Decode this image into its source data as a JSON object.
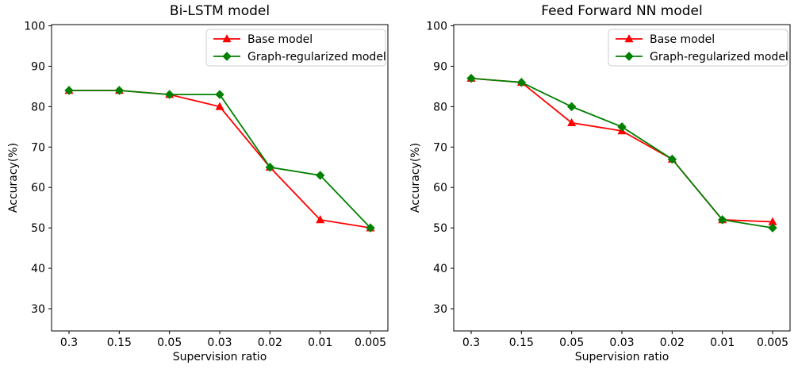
{
  "figure": {
    "background": "#ffffff",
    "legend_border_color": "#cccccc"
  },
  "chart_data": [
    {
      "type": "line",
      "title": "Bi-LSTM model",
      "xlabel": "Supervision ratio",
      "ylabel": "Accuracy(%)",
      "categories": [
        "0.3",
        "0.15",
        "0.05",
        "0.03",
        "0.02",
        "0.01",
        "0.005"
      ],
      "yticks": [
        30,
        40,
        50,
        60,
        70,
        80,
        90,
        100
      ],
      "ylim": [
        24.5,
        100.3
      ],
      "grid": false,
      "legend_position": "upper right",
      "series": [
        {
          "name": "Base model",
          "color": "#ff0000",
          "marker": "triangle-up",
          "values": [
            84,
            84,
            83,
            80,
            65,
            52,
            50
          ]
        },
        {
          "name": "Graph-regularized model",
          "color": "#008000",
          "marker": "diamond",
          "values": [
            84,
            84,
            83,
            83,
            65,
            63,
            50
          ]
        }
      ]
    },
    {
      "type": "line",
      "title": "Feed Forward NN model",
      "xlabel": "Supervision ratio",
      "ylabel": "Accuracy(%)",
      "categories": [
        "0.3",
        "0.15",
        "0.05",
        "0.03",
        "0.02",
        "0.01",
        "0.005"
      ],
      "yticks": [
        30,
        40,
        50,
        60,
        70,
        80,
        90,
        100
      ],
      "ylim": [
        24.5,
        100.3
      ],
      "grid": false,
      "legend_position": "upper right",
      "series": [
        {
          "name": "Base model",
          "color": "#ff0000",
          "marker": "triangle-up",
          "values": [
            87,
            86,
            76,
            74,
            67,
            52,
            51.5
          ]
        },
        {
          "name": "Graph-regularized model",
          "color": "#008000",
          "marker": "diamond",
          "values": [
            87,
            86,
            80,
            75,
            67,
            52,
            50
          ]
        }
      ]
    }
  ]
}
